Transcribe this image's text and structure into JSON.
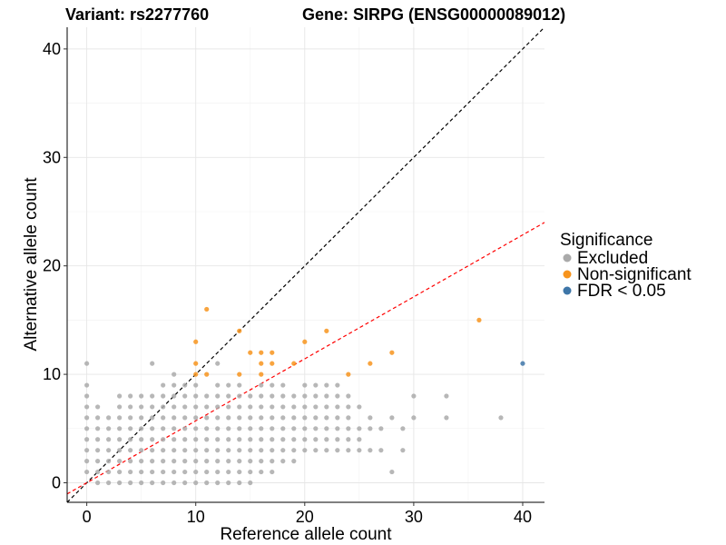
{
  "chart_data": {
    "type": "scatter",
    "title_left": "Variant: rs2277760",
    "title_right": "Gene: SIRPG (ENSG00000089012)",
    "xlabel": "Reference allele count",
    "ylabel": "Alternative allele count",
    "xlim": [
      -1.8,
      42
    ],
    "ylim": [
      -1.8,
      42
    ],
    "xticks": [
      0,
      10,
      20,
      30,
      40
    ],
    "yticks": [
      0,
      10,
      20,
      30,
      40
    ],
    "grid": true,
    "reference_lines": [
      {
        "name": "identity",
        "slope": 1,
        "intercept": 0,
        "color": "#000000",
        "style": "dashed"
      },
      {
        "name": "expected-ratio",
        "slope": 0.5714,
        "intercept": 0,
        "color": "#ff0000",
        "style": "dashed"
      }
    ],
    "legend": {
      "title": "Significance",
      "position": "right",
      "entries": [
        {
          "label": "Excluded",
          "color": "#aaaaaa"
        },
        {
          "label": "Non-significant",
          "color": "#f7941d"
        },
        {
          "label": "FDR < 0.05",
          "color": "#3e76a8"
        }
      ]
    },
    "series": [
      {
        "name": "Excluded",
        "color": "#aaaaaa",
        "points": [
          [
            0,
            11
          ],
          [
            0,
            9
          ],
          [
            0,
            8
          ],
          [
            0,
            7
          ],
          [
            0,
            6
          ],
          [
            0,
            5
          ],
          [
            0,
            4
          ],
          [
            0,
            3
          ],
          [
            0,
            2
          ],
          [
            0,
            1
          ],
          [
            1,
            7
          ],
          [
            1,
            6
          ],
          [
            1,
            5
          ],
          [
            1,
            4
          ],
          [
            1,
            3
          ],
          [
            1,
            2
          ],
          [
            1,
            1
          ],
          [
            1,
            0
          ],
          [
            2,
            6
          ],
          [
            2,
            5
          ],
          [
            2,
            4
          ],
          [
            2,
            3
          ],
          [
            2,
            2
          ],
          [
            2,
            1
          ],
          [
            2,
            0
          ],
          [
            3,
            8
          ],
          [
            3,
            7
          ],
          [
            3,
            6
          ],
          [
            3,
            5
          ],
          [
            3,
            4
          ],
          [
            3,
            3
          ],
          [
            3,
            2
          ],
          [
            3,
            1
          ],
          [
            3,
            0
          ],
          [
            4,
            8
          ],
          [
            4,
            7
          ],
          [
            4,
            6
          ],
          [
            4,
            5
          ],
          [
            4,
            4
          ],
          [
            4,
            3
          ],
          [
            4,
            2
          ],
          [
            4,
            1
          ],
          [
            4,
            0
          ],
          [
            5,
            8
          ],
          [
            5,
            7
          ],
          [
            5,
            6
          ],
          [
            5,
            5
          ],
          [
            5,
            4
          ],
          [
            5,
            3
          ],
          [
            5,
            2
          ],
          [
            5,
            1
          ],
          [
            5,
            0
          ],
          [
            6,
            11
          ],
          [
            6,
            8
          ],
          [
            6,
            7
          ],
          [
            6,
            6
          ],
          [
            6,
            5
          ],
          [
            6,
            4
          ],
          [
            6,
            3
          ],
          [
            6,
            2
          ],
          [
            6,
            1
          ],
          [
            6,
            0
          ],
          [
            7,
            9
          ],
          [
            7,
            8
          ],
          [
            7,
            7
          ],
          [
            7,
            6
          ],
          [
            7,
            5
          ],
          [
            7,
            4
          ],
          [
            7,
            3
          ],
          [
            7,
            2
          ],
          [
            7,
            1
          ],
          [
            7,
            0
          ],
          [
            8,
            10
          ],
          [
            8,
            9
          ],
          [
            8,
            8
          ],
          [
            8,
            7
          ],
          [
            8,
            6
          ],
          [
            8,
            5
          ],
          [
            8,
            4
          ],
          [
            8,
            3
          ],
          [
            8,
            2
          ],
          [
            8,
            1
          ],
          [
            8,
            0
          ],
          [
            9,
            9
          ],
          [
            9,
            8
          ],
          [
            9,
            7
          ],
          [
            9,
            6
          ],
          [
            9,
            5
          ],
          [
            9,
            4
          ],
          [
            9,
            3
          ],
          [
            9,
            2
          ],
          [
            9,
            1
          ],
          [
            9,
            0
          ],
          [
            10,
            9
          ],
          [
            10,
            8
          ],
          [
            10,
            7
          ],
          [
            10,
            6
          ],
          [
            10,
            5
          ],
          [
            10,
            4
          ],
          [
            10,
            3
          ],
          [
            10,
            2
          ],
          [
            10,
            1
          ],
          [
            10,
            0
          ],
          [
            11,
            8
          ],
          [
            11,
            7
          ],
          [
            11,
            6
          ],
          [
            11,
            5
          ],
          [
            11,
            4
          ],
          [
            11,
            3
          ],
          [
            11,
            2
          ],
          [
            11,
            1
          ],
          [
            11,
            0
          ],
          [
            12,
            11
          ],
          [
            12,
            9
          ],
          [
            12,
            8
          ],
          [
            12,
            7
          ],
          [
            12,
            6
          ],
          [
            12,
            5
          ],
          [
            12,
            4
          ],
          [
            12,
            3
          ],
          [
            12,
            2
          ],
          [
            12,
            1
          ],
          [
            12,
            0
          ],
          [
            13,
            9
          ],
          [
            13,
            8
          ],
          [
            13,
            7
          ],
          [
            13,
            6
          ],
          [
            13,
            5
          ],
          [
            13,
            4
          ],
          [
            13,
            3
          ],
          [
            13,
            2
          ],
          [
            13,
            1
          ],
          [
            13,
            0
          ],
          [
            14,
            9
          ],
          [
            14,
            8
          ],
          [
            14,
            7
          ],
          [
            14,
            6
          ],
          [
            14,
            5
          ],
          [
            14,
            4
          ],
          [
            14,
            3
          ],
          [
            14,
            2
          ],
          [
            14,
            1
          ],
          [
            14,
            0
          ],
          [
            15,
            8
          ],
          [
            15,
            7
          ],
          [
            15,
            6
          ],
          [
            15,
            5
          ],
          [
            15,
            4
          ],
          [
            15,
            3
          ],
          [
            15,
            2
          ],
          [
            15,
            1
          ],
          [
            15,
            0
          ],
          [
            16,
            9
          ],
          [
            16,
            8
          ],
          [
            16,
            7
          ],
          [
            16,
            6
          ],
          [
            16,
            5
          ],
          [
            16,
            4
          ],
          [
            16,
            3
          ],
          [
            16,
            2
          ],
          [
            16,
            1
          ],
          [
            17,
            9
          ],
          [
            17,
            8
          ],
          [
            17,
            7
          ],
          [
            17,
            6
          ],
          [
            17,
            5
          ],
          [
            17,
            4
          ],
          [
            17,
            3
          ],
          [
            17,
            2
          ],
          [
            17,
            1
          ],
          [
            18,
            9
          ],
          [
            18,
            8
          ],
          [
            18,
            7
          ],
          [
            18,
            6
          ],
          [
            18,
            5
          ],
          [
            18,
            4
          ],
          [
            18,
            3
          ],
          [
            18,
            2
          ],
          [
            19,
            8
          ],
          [
            19,
            7
          ],
          [
            19,
            6
          ],
          [
            19,
            5
          ],
          [
            19,
            4
          ],
          [
            19,
            3
          ],
          [
            19,
            2
          ],
          [
            20,
            9
          ],
          [
            20,
            8
          ],
          [
            20,
            7
          ],
          [
            20,
            6
          ],
          [
            20,
            5
          ],
          [
            20,
            4
          ],
          [
            20,
            3
          ],
          [
            21,
            9
          ],
          [
            21,
            8
          ],
          [
            21,
            7
          ],
          [
            21,
            6
          ],
          [
            21,
            5
          ],
          [
            21,
            4
          ],
          [
            21,
            3
          ],
          [
            22,
            9
          ],
          [
            22,
            8
          ],
          [
            22,
            7
          ],
          [
            22,
            6
          ],
          [
            22,
            5
          ],
          [
            22,
            4
          ],
          [
            22,
            3
          ],
          [
            23,
            9
          ],
          [
            23,
            8
          ],
          [
            23,
            7
          ],
          [
            23,
            6
          ],
          [
            23,
            5
          ],
          [
            23,
            4
          ],
          [
            23,
            3
          ],
          [
            24,
            8
          ],
          [
            24,
            7
          ],
          [
            24,
            6
          ],
          [
            24,
            5
          ],
          [
            24,
            4
          ],
          [
            24,
            3
          ],
          [
            25,
            7
          ],
          [
            25,
            5
          ],
          [
            25,
            4
          ],
          [
            25,
            3
          ],
          [
            26,
            6
          ],
          [
            26,
            5
          ],
          [
            26,
            3
          ],
          [
            27,
            5
          ],
          [
            27,
            3
          ],
          [
            28,
            6
          ],
          [
            28,
            1
          ],
          [
            29,
            5
          ],
          [
            29,
            3
          ],
          [
            30,
            8
          ],
          [
            30,
            6
          ],
          [
            33,
            8
          ],
          [
            33,
            6
          ],
          [
            38,
            6
          ]
        ]
      },
      {
        "name": "Non-significant",
        "color": "#f7941d",
        "points": [
          [
            10,
            13
          ],
          [
            10,
            11
          ],
          [
            10,
            10
          ],
          [
            11,
            16
          ],
          [
            11,
            10
          ],
          [
            14,
            14
          ],
          [
            14,
            10
          ],
          [
            15,
            12
          ],
          [
            16,
            12
          ],
          [
            16,
            11
          ],
          [
            16,
            10
          ],
          [
            17,
            12
          ],
          [
            17,
            11
          ],
          [
            19,
            11
          ],
          [
            20,
            13
          ],
          [
            22,
            14
          ],
          [
            24,
            10
          ],
          [
            26,
            11
          ],
          [
            28,
            12
          ],
          [
            36,
            15
          ]
        ]
      },
      {
        "name": "FDR < 0.05",
        "color": "#3e76a8",
        "points": [
          [
            40,
            11
          ]
        ]
      }
    ]
  }
}
